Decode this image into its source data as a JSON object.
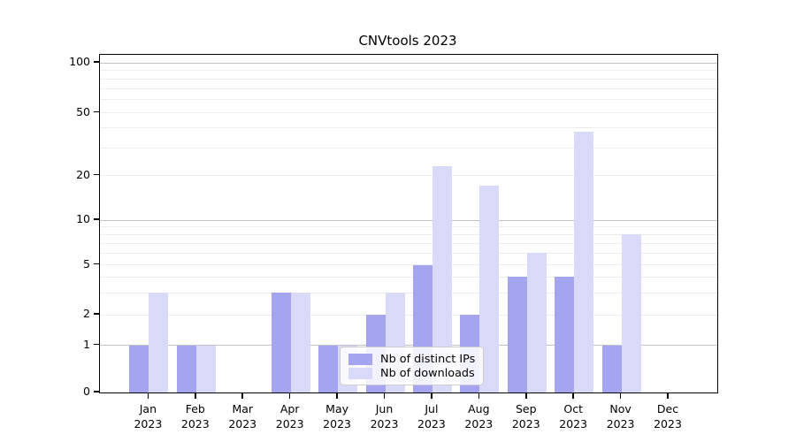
{
  "chart_data": {
    "type": "bar",
    "title": "CNVtools 2023",
    "categories": [
      "Jan",
      "Feb",
      "Mar",
      "Apr",
      "May",
      "Jun",
      "Jul",
      "Aug",
      "Sep",
      "Oct",
      "Nov",
      "Dec"
    ],
    "year_label": "2023",
    "series": [
      {
        "name": "Nb of distinct IPs",
        "color": "#a5a5ef",
        "values": [
          1,
          1,
          0,
          3,
          1,
          2,
          5,
          2,
          4,
          4,
          1,
          0
        ]
      },
      {
        "name": "Nb of downloads",
        "color": "#d9d9f8",
        "values": [
          3,
          1,
          0,
          3,
          1,
          3,
          23,
          17,
          6,
          38,
          8,
          0
        ]
      }
    ],
    "yscale": "log-like",
    "ylabel": "",
    "xlabel": "",
    "ylim": [
      0,
      103
    ],
    "yticks": [
      0,
      1,
      2,
      5,
      10,
      20,
      50,
      100
    ],
    "ytick_labels": [
      "0",
      "1",
      "2",
      "5",
      "10",
      "20",
      "50",
      "100"
    ],
    "minor_gridlines": [
      2,
      3,
      4,
      5,
      6,
      7,
      8,
      9,
      20,
      30,
      40,
      50,
      60,
      70,
      80,
      90
    ],
    "major_gridlines": [
      1,
      10,
      100
    ],
    "grid": true,
    "legend_position": "lower center"
  }
}
